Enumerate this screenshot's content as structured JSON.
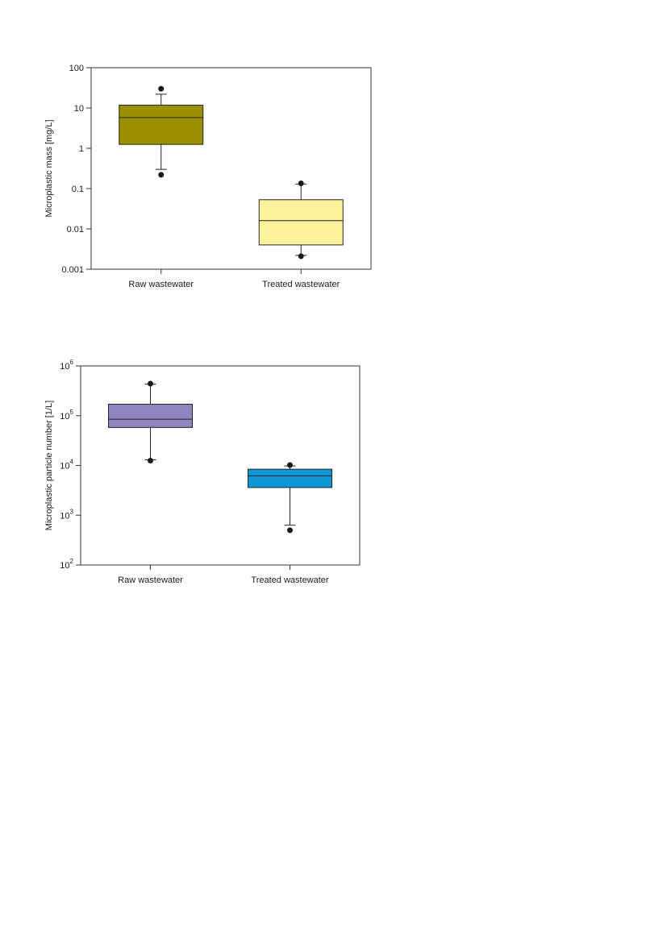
{
  "chart_data": [
    {
      "type": "box",
      "ylabel": "Microplastic mass [mg/L]",
      "yscale": "log",
      "ylim": [
        0.001,
        100
      ],
      "yticks": [
        {
          "value": 0.001,
          "label": "0.001"
        },
        {
          "value": 0.01,
          "label": "0.01"
        },
        {
          "value": 0.1,
          "label": "0.1"
        },
        {
          "value": 1,
          "label": "1"
        },
        {
          "value": 10,
          "label": "10"
        },
        {
          "value": 100,
          "label": "100"
        }
      ],
      "categories": [
        "Raw wastewater",
        "Treated wastewater"
      ],
      "boxes": [
        {
          "category": "Raw wastewater",
          "color": "#9a9000",
          "whisker_low": 0.3,
          "q1": 1.25,
          "median": 5.8,
          "q3": 11.8,
          "whisker_high": 22,
          "outliers": [
            0.22,
            30
          ]
        },
        {
          "category": "Treated wastewater",
          "color": "#fdf29c",
          "whisker_low": 0.0022,
          "q1": 0.004,
          "median": 0.016,
          "q3": 0.053,
          "whisker_high": 0.13,
          "outliers": [
            0.0021,
            0.135
          ]
        }
      ],
      "grid": false
    },
    {
      "type": "box",
      "ylabel": "Microplastic particle number [1/L]",
      "yscale": "log",
      "ylim": [
        100,
        1000000
      ],
      "yticks": [
        {
          "value": 100,
          "base": "10",
          "exp": "2"
        },
        {
          "value": 1000,
          "base": "10",
          "exp": "3"
        },
        {
          "value": 10000,
          "base": "10",
          "exp": "4"
        },
        {
          "value": 100000,
          "base": "10",
          "exp": "5"
        },
        {
          "value": 1000000,
          "base": "10",
          "exp": "6"
        }
      ],
      "categories": [
        "Raw wastewater",
        "Treated wastewater"
      ],
      "boxes": [
        {
          "category": "Raw wastewater",
          "color": "#9085c0",
          "whisker_low": 13000,
          "q1": 58000,
          "median": 85000,
          "q3": 170000,
          "whisker_high": 430000,
          "outliers": [
            12500,
            440000
          ]
        },
        {
          "category": "Treated wastewater",
          "color": "#0f96d6",
          "whisker_low": 630,
          "q1": 3600,
          "median": 6200,
          "q3": 8400,
          "whisker_high": 9800,
          "outliers": [
            500,
            10200
          ]
        }
      ],
      "grid": false
    }
  ]
}
